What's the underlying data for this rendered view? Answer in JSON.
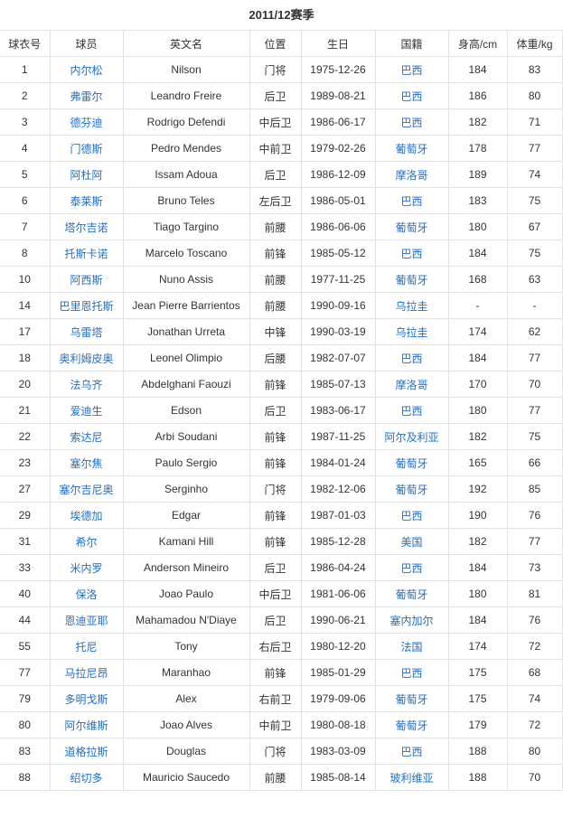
{
  "title": "2011/12赛季",
  "headers": [
    "球衣号",
    "球员",
    "英文名",
    "位置",
    "生日",
    "国籍",
    "身高/cm",
    "体重/kg"
  ],
  "colors": {
    "link": "#1f6fc5",
    "text": "#333333",
    "border": "#e2e2e2"
  },
  "rows": [
    [
      "1",
      "内尔松",
      "Nilson",
      "门将",
      "1975-12-26",
      "巴西",
      "184",
      "83"
    ],
    [
      "2",
      "弗雷尔",
      "Leandro Freire",
      "后卫",
      "1989-08-21",
      "巴西",
      "186",
      "80"
    ],
    [
      "3",
      "德芬迪",
      "Rodrigo Defendi",
      "中后卫",
      "1986-06-17",
      "巴西",
      "182",
      "71"
    ],
    [
      "4",
      "门德斯",
      "Pedro Mendes",
      "中前卫",
      "1979-02-26",
      "葡萄牙",
      "178",
      "77"
    ],
    [
      "5",
      "阿杜阿",
      "Issam Adoua",
      "后卫",
      "1986-12-09",
      "摩洛哥",
      "189",
      "74"
    ],
    [
      "6",
      "泰莱斯",
      "Bruno Teles",
      "左后卫",
      "1986-05-01",
      "巴西",
      "183",
      "75"
    ],
    [
      "7",
      "塔尔吉诺",
      "Tiago Targino",
      "前腰",
      "1986-06-06",
      "葡萄牙",
      "180",
      "67"
    ],
    [
      "8",
      "托斯卡诺",
      "Marcelo Toscano",
      "前锋",
      "1985-05-12",
      "巴西",
      "184",
      "75"
    ],
    [
      "10",
      "阿西斯",
      "Nuno Assis",
      "前腰",
      "1977-11-25",
      "葡萄牙",
      "168",
      "63"
    ],
    [
      "14",
      "巴里恩托斯",
      "Jean Pierre Barrientos",
      "前腰",
      "1990-09-16",
      "乌拉圭",
      "-",
      "-"
    ],
    [
      "17",
      "乌雷塔",
      "Jonathan Urreta",
      "中锋",
      "1990-03-19",
      "乌拉圭",
      "174",
      "62"
    ],
    [
      "18",
      "奥利姆皮奥",
      "Leonel Olimpio",
      "后腰",
      "1982-07-07",
      "巴西",
      "184",
      "77"
    ],
    [
      "20",
      "法乌齐",
      "Abdelghani Faouzi",
      "前锋",
      "1985-07-13",
      "摩洛哥",
      "170",
      "70"
    ],
    [
      "21",
      "爱迪生",
      "Edson",
      "后卫",
      "1983-06-17",
      "巴西",
      "180",
      "77"
    ],
    [
      "22",
      "索达尼",
      "Arbi Soudani",
      "前锋",
      "1987-11-25",
      "阿尔及利亚",
      "182",
      "75"
    ],
    [
      "23",
      "塞尔焦",
      "Paulo Sergio",
      "前锋",
      "1984-01-24",
      "葡萄牙",
      "165",
      "66"
    ],
    [
      "27",
      "塞尔吉尼奥",
      "Serginho",
      "门将",
      "1982-12-06",
      "葡萄牙",
      "192",
      "85"
    ],
    [
      "29",
      "埃德加",
      "Edgar",
      "前锋",
      "1987-01-03",
      "巴西",
      "190",
      "76"
    ],
    [
      "31",
      "希尔",
      "Kamani Hill",
      "前锋",
      "1985-12-28",
      "美国",
      "182",
      "77"
    ],
    [
      "33",
      "米内罗",
      "Anderson Mineiro",
      "后卫",
      "1986-04-24",
      "巴西",
      "184",
      "73"
    ],
    [
      "40",
      "保洛",
      "Joao Paulo",
      "中后卫",
      "1981-06-06",
      "葡萄牙",
      "180",
      "81"
    ],
    [
      "44",
      "恩迪亚耶",
      "Mahamadou N'Diaye",
      "后卫",
      "1990-06-21",
      "塞内加尔",
      "184",
      "76"
    ],
    [
      "55",
      "托尼",
      "Tony",
      "右后卫",
      "1980-12-20",
      "法国",
      "174",
      "72"
    ],
    [
      "77",
      "马拉尼昂",
      "Maranhao",
      "前锋",
      "1985-01-29",
      "巴西",
      "175",
      "68"
    ],
    [
      "79",
      "多明戈斯",
      "Alex",
      "右前卫",
      "1979-09-06",
      "葡萄牙",
      "175",
      "74"
    ],
    [
      "80",
      "阿尔维斯",
      "Joao Alves",
      "中前卫",
      "1980-08-18",
      "葡萄牙",
      "179",
      "72"
    ],
    [
      "83",
      "道格拉斯",
      "Douglas",
      "门将",
      "1983-03-09",
      "巴西",
      "188",
      "80"
    ],
    [
      "88",
      "绍切多",
      "Mauricio Saucedo",
      "前腰",
      "1985-08-14",
      "玻利维亚",
      "188",
      "70"
    ]
  ]
}
